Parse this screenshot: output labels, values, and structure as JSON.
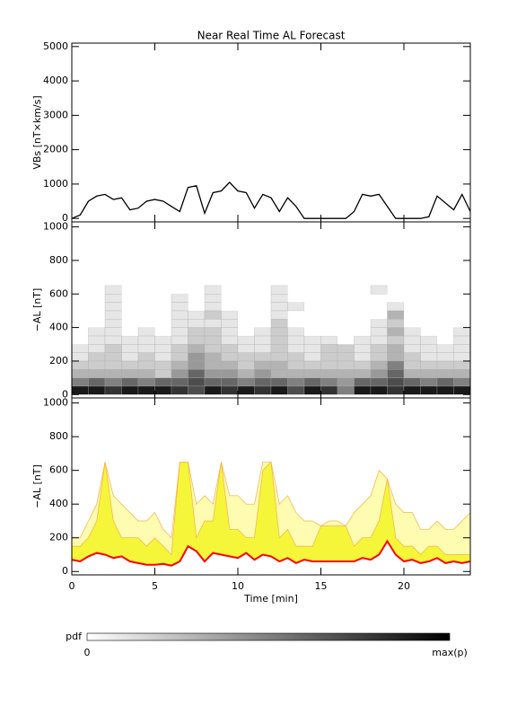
{
  "chart_data": [
    {
      "type": "line",
      "title": "Near Real Time AL Forecast",
      "ylabel": "VBs [nT×km/s]",
      "x": [
        0,
        0.5,
        1,
        1.5,
        2,
        2.5,
        3,
        3.5,
        4,
        4.5,
        5,
        5.5,
        6,
        6.5,
        7,
        7.5,
        8,
        8.5,
        9,
        9.5,
        10,
        10.5,
        11,
        11.5,
        12,
        12.5,
        13,
        13.5,
        14,
        14.5,
        15,
        15.5,
        16,
        16.5,
        17,
        17.5,
        18,
        18.5,
        19,
        19.5,
        20,
        20.5,
        21,
        21.5,
        22,
        22.5,
        23,
        23.5,
        24
      ],
      "series": [
        {
          "color": "#000000",
          "values": [
            0,
            100,
            500,
            650,
            700,
            550,
            600,
            250,
            300,
            500,
            550,
            500,
            350,
            200,
            900,
            950,
            150,
            750,
            800,
            1050,
            800,
            750,
            300,
            700,
            600,
            200,
            600,
            350,
            0,
            0,
            0,
            0,
            0,
            0,
            200,
            700,
            650,
            700,
            350,
            0,
            0,
            0,
            0,
            50,
            650,
            450,
            250,
            700,
            200
          ]
        }
      ],
      "xlim": [
        0,
        24
      ],
      "xticks": [
        0,
        5,
        10,
        15,
        20
      ],
      "ylim": [
        -100,
        5100
      ],
      "yticks": [
        0,
        1000,
        2000,
        3000,
        4000,
        5000
      ]
    },
    {
      "type": "heatmap",
      "ylabel": "−AL [nT]",
      "x_bins": [
        0,
        1,
        2,
        3,
        4,
        5,
        6,
        7,
        8,
        9,
        10,
        11,
        12,
        13,
        14,
        15,
        16,
        17,
        18,
        19,
        20,
        21,
        22,
        23,
        24
      ],
      "y_bins": [
        0,
        50,
        100,
        150,
        200,
        250,
        300,
        350,
        400,
        450,
        500,
        550,
        600,
        650
      ],
      "z": [
        [
          0.9,
          0.9,
          0.8,
          0.9,
          0.9,
          0.9,
          0.8,
          0.7,
          0.9,
          0.8,
          0.9,
          0.8,
          0.9,
          0.7,
          0.9,
          0.8,
          0.5,
          0.9,
          0.9,
          0.8,
          0.9,
          0.9,
          0.9,
          0.9
        ],
        [
          0.5,
          0.6,
          0.5,
          0.6,
          0.5,
          0.6,
          0.6,
          0.7,
          0.6,
          0.6,
          0.5,
          0.6,
          0.6,
          0.5,
          0.6,
          0.5,
          0.4,
          0.6,
          0.6,
          0.7,
          0.6,
          0.5,
          0.6,
          0.5
        ],
        [
          0.3,
          0.3,
          0.3,
          0.3,
          0.3,
          0.2,
          0.4,
          0.6,
          0.4,
          0.4,
          0.3,
          0.4,
          0.3,
          0.3,
          0.3,
          0.3,
          0.3,
          0.3,
          0.4,
          0.6,
          0.3,
          0.3,
          0.3,
          0.3
        ],
        [
          0.2,
          0.2,
          0.2,
          0.2,
          0.2,
          0.2,
          0.3,
          0.4,
          0.3,
          0.3,
          0.2,
          0.3,
          0.3,
          0.2,
          0.2,
          0.2,
          0.2,
          0.2,
          0.3,
          0.5,
          0.2,
          0.2,
          0.2,
          0.2
        ],
        [
          0.1,
          0.2,
          0.2,
          0.1,
          0.2,
          0.1,
          0.2,
          0.4,
          0.3,
          0.2,
          0.2,
          0.2,
          0.2,
          0.2,
          0.1,
          0.2,
          0.2,
          0.1,
          0.2,
          0.3,
          0.2,
          0.1,
          0.1,
          0.1
        ],
        [
          0.1,
          0.1,
          0.2,
          0.1,
          0.1,
          0.1,
          0.2,
          0.3,
          0.2,
          0.2,
          0.1,
          0.1,
          0.2,
          0.1,
          0.1,
          0.2,
          0.2,
          0.1,
          0.2,
          0.3,
          0.1,
          0.1,
          0.1,
          0.1
        ],
        [
          0,
          0.1,
          0.1,
          0.1,
          0.1,
          0.1,
          0.1,
          0.2,
          0.2,
          0.1,
          0.1,
          0.1,
          0.2,
          0.1,
          0.1,
          0.1,
          0,
          0.1,
          0.1,
          0.2,
          0.1,
          0.1,
          0,
          0.1
        ],
        [
          0,
          0.1,
          0.1,
          0,
          0.1,
          0,
          0.1,
          0.2,
          0.2,
          0.1,
          0,
          0.1,
          0.2,
          0.1,
          0,
          0,
          0,
          0,
          0.1,
          0.3,
          0.1,
          0,
          0,
          0.1
        ],
        [
          0,
          0,
          0.1,
          0,
          0,
          0,
          0.1,
          0.1,
          0.1,
          0.1,
          0,
          0,
          0.2,
          0,
          0,
          0,
          0,
          0,
          0.1,
          0.2,
          0,
          0,
          0,
          0
        ],
        [
          0,
          0,
          0.1,
          0,
          0,
          0,
          0.1,
          0.1,
          0.2,
          0.1,
          0,
          0,
          0.1,
          0,
          0,
          0,
          0,
          0,
          0,
          0.3,
          0,
          0,
          0,
          0
        ],
        [
          0,
          0,
          0.1,
          0,
          0,
          0,
          0.1,
          0,
          0.1,
          0,
          0,
          0,
          0.1,
          0.1,
          0,
          0,
          0,
          0,
          0,
          0.1,
          0,
          0,
          0,
          0
        ],
        [
          0,
          0,
          0.1,
          0,
          0,
          0,
          0.1,
          0,
          0.1,
          0,
          0,
          0,
          0.1,
          0,
          0,
          0,
          0,
          0,
          0,
          0,
          0,
          0,
          0,
          0
        ],
        [
          0,
          0,
          0.1,
          0,
          0,
          0,
          0,
          0,
          0.1,
          0,
          0,
          0,
          0.1,
          0,
          0,
          0,
          0,
          0,
          0.1,
          0,
          0,
          0,
          0,
          0
        ]
      ],
      "xlim": [
        0,
        24
      ],
      "xticks": [
        0,
        5,
        10,
        15,
        20
      ],
      "ylim": [
        -20,
        1030
      ],
      "yticks": [
        0,
        200,
        400,
        600,
        800,
        1000
      ]
    },
    {
      "type": "band",
      "ylabel": "−AL [nT]",
      "xlabel": "Time [min]",
      "x": [
        0,
        0.5,
        1,
        1.5,
        2,
        2.5,
        3,
        3.5,
        4,
        4.5,
        5,
        5.5,
        6,
        6.5,
        7,
        7.5,
        8,
        8.5,
        9,
        9.5,
        10,
        10.5,
        11,
        11.5,
        12,
        12.5,
        13,
        13.5,
        14,
        14.5,
        15,
        15.5,
        16,
        16.5,
        17,
        17.5,
        18,
        18.5,
        19,
        19.5,
        20,
        20.5,
        21,
        21.5,
        22,
        22.5,
        23,
        23.5,
        24
      ],
      "series": [
        {
          "color": "#fdfcb0",
          "outline": "#f5b04a",
          "values": [
            200,
            200,
            300,
            400,
            650,
            450,
            400,
            350,
            300,
            300,
            350,
            250,
            200,
            650,
            650,
            400,
            450,
            400,
            650,
            450,
            450,
            400,
            400,
            650,
            650,
            400,
            450,
            350,
            300,
            300,
            270,
            300,
            300,
            270,
            350,
            400,
            450,
            600,
            550,
            400,
            350,
            350,
            250,
            250,
            300,
            250,
            250,
            300,
            350
          ]
        },
        {
          "color": "#f5f53a",
          "outline": "#f5b04a",
          "values": [
            150,
            150,
            200,
            300,
            650,
            300,
            200,
            200,
            200,
            150,
            200,
            150,
            100,
            650,
            650,
            200,
            300,
            300,
            650,
            250,
            250,
            200,
            200,
            600,
            650,
            200,
            250,
            150,
            150,
            150,
            270,
            270,
            270,
            270,
            150,
            200,
            200,
            300,
            550,
            200,
            150,
            150,
            100,
            150,
            150,
            100,
            100,
            100,
            100
          ]
        },
        {
          "color": "#ff0000",
          "values": [
            70,
            60,
            90,
            110,
            100,
            80,
            90,
            60,
            50,
            40,
            40,
            45,
            35,
            60,
            150,
            120,
            60,
            110,
            100,
            90,
            80,
            110,
            70,
            100,
            90,
            60,
            80,
            50,
            70,
            60,
            60,
            60,
            60,
            60,
            60,
            80,
            70,
            100,
            180,
            100,
            60,
            70,
            50,
            60,
            80,
            50,
            60,
            50,
            60
          ]
        }
      ],
      "xlim": [
        0,
        24
      ],
      "xticks": [
        0,
        5,
        10,
        15,
        20
      ],
      "ylim": [
        -20,
        1030
      ],
      "yticks": [
        0,
        200,
        400,
        600,
        800,
        1000
      ]
    }
  ],
  "colorbar": {
    "label": "pdf",
    "min_label": "0",
    "max_label": "max(p)"
  }
}
